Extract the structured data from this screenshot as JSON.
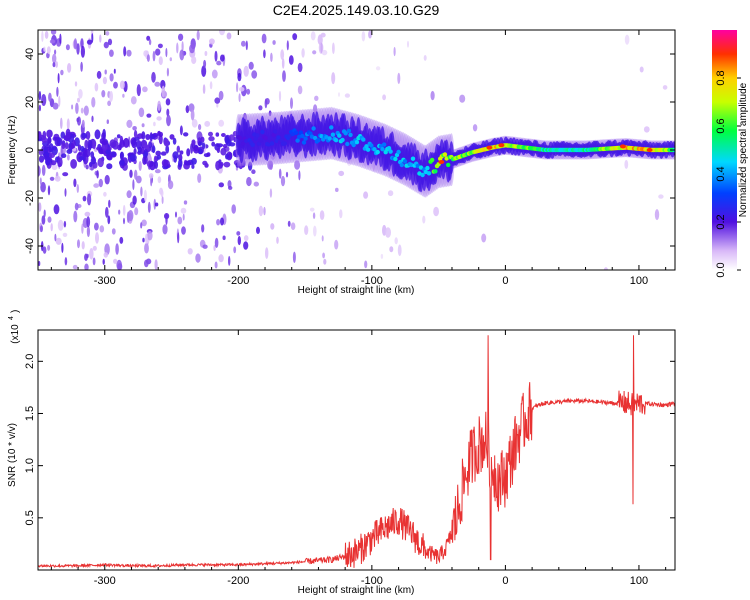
{
  "title": "C2E4.2025.149.03.10.G29",
  "chart_data": [
    {
      "type": "heatmap",
      "xlabel": "Height of straight line (km)",
      "ylabel": "Frequency (Hz)",
      "xlim": [
        -350,
        127
      ],
      "ylim": [
        -50,
        50
      ],
      "x_ticks": [
        -300,
        -200,
        -100,
        0,
        100
      ],
      "x_tick_labels": [
        "-300",
        "-200",
        "-100",
        "0",
        "100"
      ],
      "y_ticks": [
        -40,
        -20,
        0,
        20,
        40
      ],
      "y_tick_labels": [
        "-40",
        "-20",
        "0",
        "20",
        "40"
      ],
      "colorbar": {
        "label": "Normalized spectral amplitude",
        "range": [
          0,
          1
        ],
        "ticks": [
          0.0,
          0.2,
          0.4,
          0.6,
          0.8
        ],
        "tick_labels": [
          "0.0",
          "0.2",
          "0.4",
          "0.6",
          "0.8"
        ]
      },
      "ridge": [
        {
          "x": -200,
          "y": 4,
          "amp": 0.25
        },
        {
          "x": -170,
          "y": 5,
          "amp": 0.25
        },
        {
          "x": -150,
          "y": 6,
          "amp": 0.4
        },
        {
          "x": -130,
          "y": 7,
          "amp": 0.45
        },
        {
          "x": -110,
          "y": 4,
          "amp": 0.45
        },
        {
          "x": -90,
          "y": 0,
          "amp": 0.45
        },
        {
          "x": -75,
          "y": -4,
          "amp": 0.45
        },
        {
          "x": -60,
          "y": -9,
          "amp": 0.45
        },
        {
          "x": -50,
          "y": -5,
          "amp": 0.75
        },
        {
          "x": -40,
          "y": -4,
          "amp": 0.7
        },
        {
          "x": -25,
          "y": -1,
          "amp": 0.7
        },
        {
          "x": -10,
          "y": 1,
          "amp": 0.85
        },
        {
          "x": 0,
          "y": 2,
          "amp": 0.8
        },
        {
          "x": 30,
          "y": 0,
          "amp": 0.55
        },
        {
          "x": 60,
          "y": 0,
          "amp": 0.55
        },
        {
          "x": 90,
          "y": 1,
          "amp": 0.85
        },
        {
          "x": 110,
          "y": 0,
          "amp": 0.85
        },
        {
          "x": 127,
          "y": 0,
          "amp": 0.6
        }
      ]
    },
    {
      "type": "line",
      "xlabel": "Height of straight line (km)",
      "ylabel": "SNR (10 * v/v)",
      "y_scale_label": "(x10",
      "y_scale_exp": "4",
      "xlim": [
        -350,
        127
      ],
      "ylim": [
        0.0,
        2.3
      ],
      "x_ticks": [
        -300,
        -200,
        -100,
        0,
        100
      ],
      "x_tick_labels": [
        "-300",
        "-200",
        "-100",
        "0",
        "100"
      ],
      "y_ticks": [
        0.5,
        1.0,
        1.5,
        2.0
      ],
      "y_tick_labels": [
        "0.5",
        "1.0",
        "1.5",
        "2.0"
      ],
      "series": [
        {
          "color": "#e83232",
          "x": [
            -350,
            -320,
            -300,
            -280,
            -260,
            -240,
            -220,
            -200,
            -180,
            -160,
            -140,
            -130,
            -120,
            -110,
            -100,
            -90,
            -80,
            -70,
            -60,
            -50,
            -45,
            -40,
            -35,
            -30,
            -25,
            -20,
            -15,
            -10,
            -5,
            0,
            5,
            10,
            15,
            20,
            25,
            30,
            40,
            50,
            60,
            70,
            80,
            90,
            95,
            100,
            110,
            120,
            127
          ],
          "y": [
            0.04,
            0.04,
            0.05,
            0.04,
            0.04,
            0.05,
            0.05,
            0.05,
            0.06,
            0.07,
            0.09,
            0.1,
            0.13,
            0.18,
            0.3,
            0.4,
            0.48,
            0.35,
            0.18,
            0.12,
            0.2,
            0.35,
            0.6,
            0.9,
            1.1,
            1.2,
            1.25,
            1.0,
            0.85,
            0.9,
            1.1,
            1.3,
            1.45,
            1.55,
            1.58,
            1.6,
            1.61,
            1.62,
            1.62,
            1.61,
            1.6,
            1.6,
            1.58,
            1.6,
            1.59,
            1.58,
            1.6
          ]
        }
      ]
    }
  ]
}
